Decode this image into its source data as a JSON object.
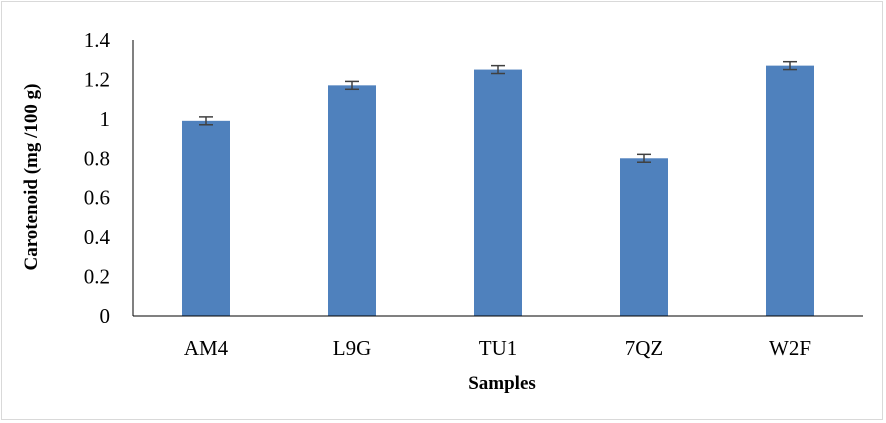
{
  "chart_data": {
    "type": "bar",
    "title": "",
    "xlabel": "Samples",
    "ylabel": "Carotenoid (mg /100 g)",
    "categories": [
      "AM4",
      "L9G",
      "TU1",
      "7QZ",
      "W2F"
    ],
    "values": [
      0.99,
      1.17,
      1.25,
      0.8,
      1.27
    ],
    "error": [
      0.02,
      0.02,
      0.02,
      0.02,
      0.02
    ],
    "ylim": [
      0,
      1.4
    ],
    "yticks": [
      "0",
      "0.2",
      "0.4",
      "0.6",
      "0.8",
      "1",
      "1.2",
      "1.4"
    ],
    "grid": false,
    "legend": "none",
    "bar_color": "#4f81bd",
    "error_color": "#404040"
  }
}
